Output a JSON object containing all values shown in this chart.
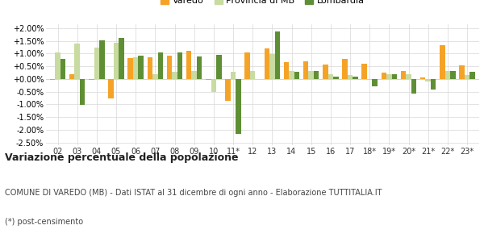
{
  "categories": [
    "02",
    "03",
    "04",
    "05",
    "06",
    "07",
    "08",
    "09",
    "10",
    "11*",
    "12",
    "13",
    "14",
    "15",
    "16",
    "17",
    "18*",
    "19*",
    "20*",
    "21*",
    "22*",
    "23*"
  ],
  "varedo": [
    -0.05,
    0.2,
    -0.05,
    -0.75,
    0.82,
    0.85,
    0.9,
    1.1,
    -0.05,
    -0.85,
    1.05,
    1.2,
    0.65,
    0.7,
    0.57,
    0.8,
    0.6,
    0.25,
    0.3,
    0.05,
    1.32,
    0.52
  ],
  "provincia": [
    1.05,
    1.4,
    1.22,
    1.42,
    0.85,
    0.2,
    0.28,
    0.3,
    -0.5,
    0.28,
    0.3,
    0.98,
    0.3,
    0.3,
    0.2,
    0.15,
    -0.05,
    0.18,
    0.18,
    -0.1,
    0.3,
    0.15
  ],
  "lombardia": [
    0.8,
    -1.02,
    1.52,
    1.6,
    0.9,
    1.05,
    1.05,
    0.88,
    0.95,
    -2.15,
    0.0,
    1.85,
    0.28,
    0.3,
    0.1,
    0.1,
    -0.3,
    0.2,
    -0.58,
    -0.4,
    0.3,
    0.28
  ],
  "color_varedo": "#f5a327",
  "color_provincia": "#c8dba0",
  "color_lombardia": "#5f8f35",
  "legend_varedo": "Varedo",
  "legend_provincia": "Provincia di MB",
  "legend_lombardia": "Lombardia",
  "title": "Variazione percentuale della popolazione",
  "footnote1": "COMUNE DI VAREDO (MB) - Dati ISTAT al 31 dicembre di ogni anno - Elaborazione TUTTITALIA.IT",
  "footnote2": "(*) post-censimento",
  "ylim": [
    -2.6,
    2.15
  ],
  "yticks": [
    -2.5,
    -2.0,
    -1.5,
    -1.0,
    -0.5,
    0.0,
    0.5,
    1.0,
    1.5,
    2.0
  ],
  "background_color": "#ffffff",
  "grid_color": "#d8d8d8"
}
